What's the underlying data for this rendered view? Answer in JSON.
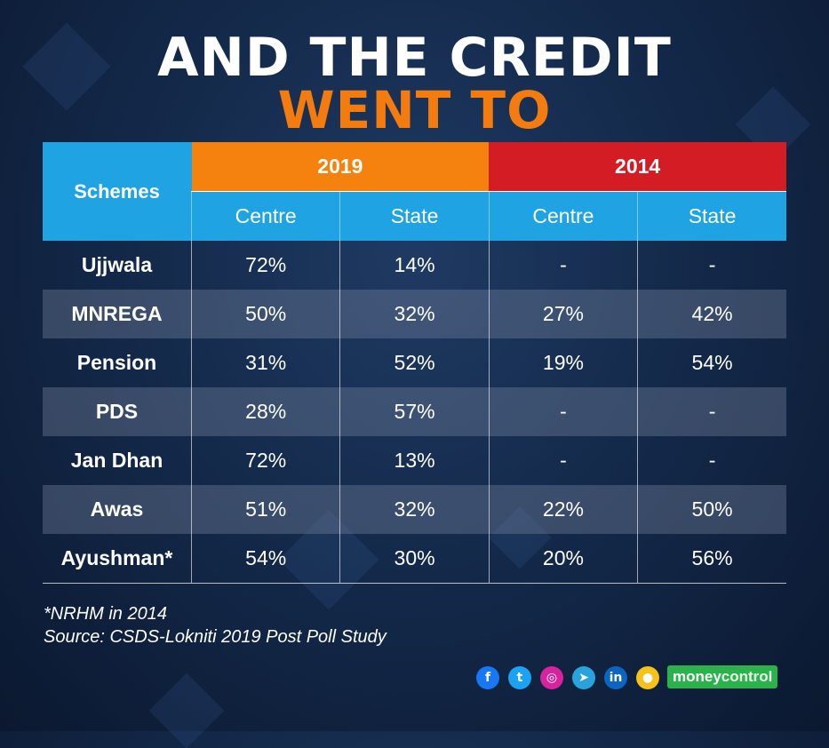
{
  "title_line1": "AND THE CREDIT",
  "title_line2": "WENT TO",
  "chart_data": {
    "type": "table",
    "row_header_label": "Schemes",
    "year_groups": [
      "2019",
      "2014"
    ],
    "sub_columns": [
      "Centre",
      "State",
      "Centre",
      "State"
    ],
    "rows": [
      {
        "scheme": "Ujjwala",
        "cells": [
          "72%",
          "14%",
          "-",
          "-"
        ]
      },
      {
        "scheme": "MNREGA",
        "cells": [
          "50%",
          "32%",
          "27%",
          "42%"
        ]
      },
      {
        "scheme": "Pension",
        "cells": [
          "31%",
          "52%",
          "19%",
          "54%"
        ]
      },
      {
        "scheme": "PDS",
        "cells": [
          "28%",
          "57%",
          "-",
          "-"
        ]
      },
      {
        "scheme": "Jan Dhan",
        "cells": [
          "72%",
          "13%",
          "-",
          "-"
        ]
      },
      {
        "scheme": "Awas",
        "cells": [
          "51%",
          "32%",
          "22%",
          "50%"
        ]
      },
      {
        "scheme": "Ayushman*",
        "cells": [
          "54%",
          "30%",
          "20%",
          "56%"
        ]
      }
    ]
  },
  "footnote": "*NRHM in 2014",
  "source": "Source: CSDS-Lokniti 2019 Post Poll Study",
  "social_icons": [
    {
      "icon": "facebook-icon",
      "glyph": "f",
      "color": "#1877f2"
    },
    {
      "icon": "twitter-icon",
      "glyph": "t",
      "color": "#1da1f2"
    },
    {
      "icon": "instagram-icon",
      "glyph": "◎",
      "color": "#d6249f"
    },
    {
      "icon": "telegram-icon",
      "glyph": "➤",
      "color": "#2aa3dd"
    },
    {
      "icon": "linkedin-icon",
      "glyph": "in",
      "color": "#0a66c2"
    },
    {
      "icon": "koo-icon",
      "glyph": "●",
      "color": "#f4c21b"
    }
  ],
  "brand": {
    "part1": "money",
    "part2": "control"
  },
  "colors": {
    "year_2019": "#f5820e",
    "year_2014": "#d31c24",
    "header_blue": "#1fa3e3",
    "title_orange": "#f47c0f"
  }
}
